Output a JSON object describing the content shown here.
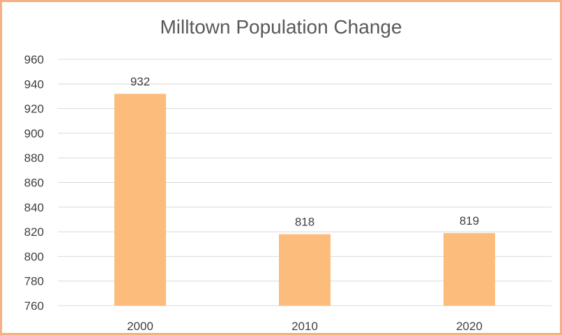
{
  "chart_data": {
    "type": "bar",
    "title": "Milltown Population Change",
    "xlabel": "",
    "ylabel": "",
    "categories": [
      "2000",
      "2010",
      "2020"
    ],
    "values": [
      932,
      818,
      819
    ],
    "data_labels": [
      "932",
      "818",
      "819"
    ],
    "ylim": [
      760,
      960
    ],
    "yticks": [
      760,
      780,
      800,
      820,
      840,
      860,
      880,
      900,
      920,
      940,
      960
    ],
    "ytick_labels": [
      "760",
      "780",
      "800",
      "820",
      "840",
      "860",
      "880",
      "900",
      "920",
      "940",
      "960"
    ],
    "grid": true,
    "legend": "none",
    "colors": {
      "bar": "#fbbc7c",
      "border": "#f4b183",
      "gridline": "#d9d9d9",
      "text": "#404040",
      "title": "#595959"
    }
  }
}
